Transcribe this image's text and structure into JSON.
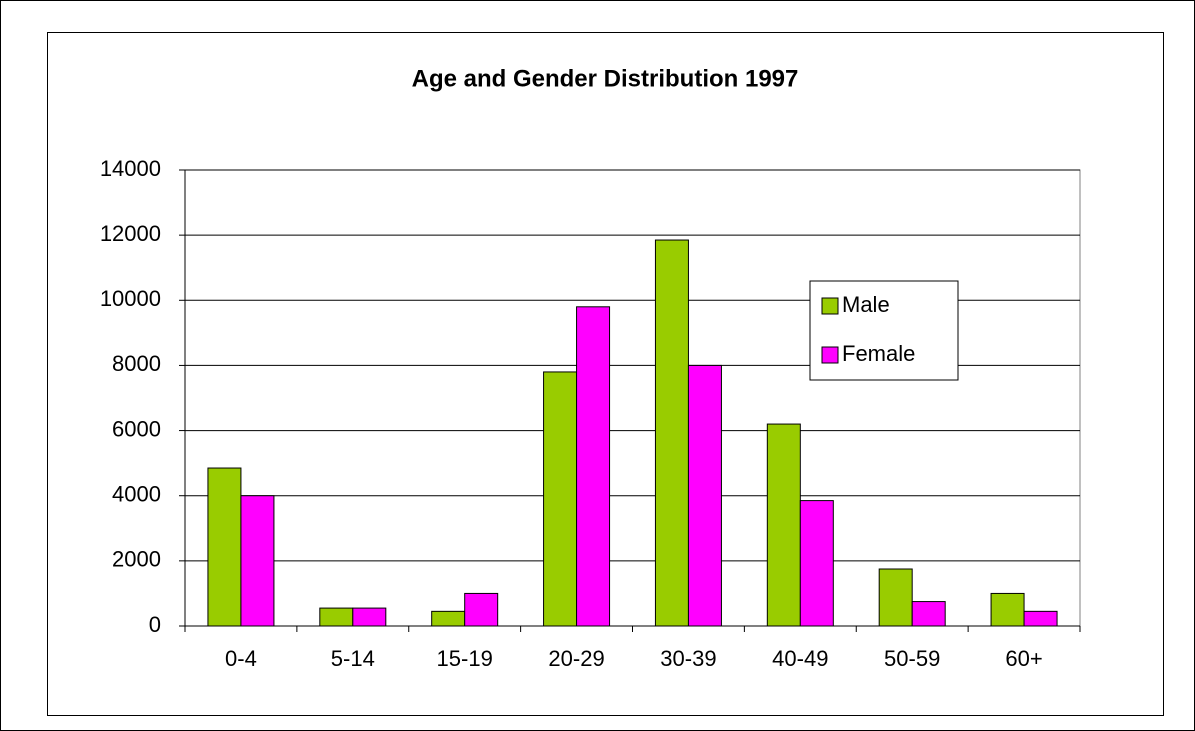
{
  "chart_data": {
    "type": "bar",
    "title": "Age and Gender Distribution 1997",
    "categories": [
      "0-4",
      "5-14",
      "15-19",
      "20-29",
      "30-39",
      "40-49",
      "50-59",
      "60+"
    ],
    "series": [
      {
        "name": "Male",
        "color": "#99cc00",
        "values": [
          4850,
          550,
          450,
          7800,
          11850,
          6200,
          1750,
          1000
        ]
      },
      {
        "name": "Female",
        "color": "#ff00ff",
        "values": [
          4000,
          550,
          1000,
          9800,
          8000,
          3850,
          750,
          450
        ]
      }
    ],
    "ylim": [
      0,
      14000
    ],
    "yticks": [
      0,
      2000,
      4000,
      6000,
      8000,
      10000,
      12000,
      14000
    ],
    "grid": true,
    "legend": "right"
  }
}
